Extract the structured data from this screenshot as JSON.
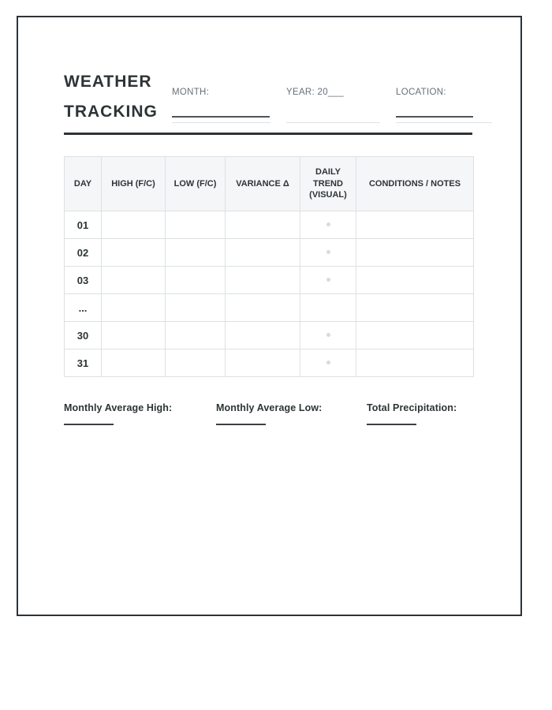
{
  "title": [
    "WEATHER",
    "TRACKING"
  ],
  "fields": [
    {
      "id": "month",
      "label": "MONTH:"
    },
    {
      "id": "year",
      "label": "YEAR: 20___"
    },
    {
      "id": "location",
      "label": "LOCATION:"
    }
  ],
  "table": {
    "columns": [
      {
        "id": "day",
        "label": "DAY"
      },
      {
        "id": "high",
        "label": "HIGH (F/C)"
      },
      {
        "id": "low",
        "label": "LOW (F/C)"
      },
      {
        "id": "variance",
        "label": "VARIANCE Δ"
      },
      {
        "id": "trend",
        "label": "DAILY TREND (VISUAL)"
      },
      {
        "id": "notes",
        "label": "CONDITIONS / NOTES"
      }
    ],
    "rows": [
      {
        "day": "01",
        "trend_dot": true
      },
      {
        "day": "02",
        "trend_dot": true
      },
      {
        "day": "03",
        "trend_dot": true
      },
      {
        "day": "...",
        "trend_dot": false
      },
      {
        "day": "30",
        "trend_dot": true
      },
      {
        "day": "31",
        "trend_dot": true
      }
    ]
  },
  "summary": {
    "items": [
      {
        "label": "Monthly Average High:"
      },
      {
        "label": "Monthly Average Low:"
      },
      {
        "label": "Total Precipitation:"
      }
    ]
  },
  "colors": {
    "ink": "#2d3436",
    "page_border": "#2e3338",
    "table_border": "#dde1e4",
    "header_bg": "#f5f6f8",
    "label_gray": "#66707a",
    "dot_gray": "#d8dadc"
  }
}
